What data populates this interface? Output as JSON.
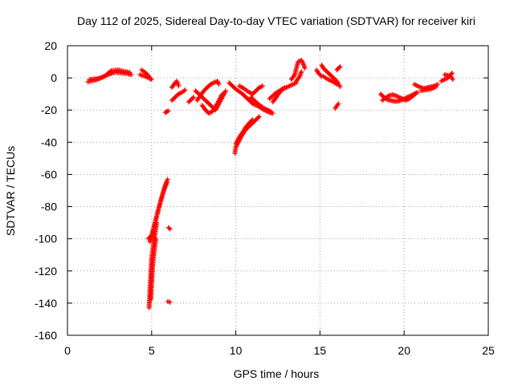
{
  "chart_data": {
    "type": "scatter",
    "title": "Day 112 of 2025, Sidereal Day-to-day VTEC variation (SDTVAR) for receiver kiri",
    "xlabel": "GPS time / hours",
    "ylabel": "SDTVAR / TECUs",
    "xlim": [
      0,
      25
    ],
    "ylim": [
      -160,
      20
    ],
    "xticks": [
      "0",
      "5",
      "10",
      "15",
      "20",
      "25"
    ],
    "yticks": [
      "20",
      "0",
      "-20",
      "-40",
      "-60",
      "-80",
      "-100",
      "-120",
      "-140",
      "-160"
    ],
    "grid": true,
    "marker": "+",
    "color": "#ff0000",
    "series": [
      {
        "segments": [
          [
            [
              1.2,
              -2.5
            ],
            [
              1.6,
              -1.5
            ],
            [
              2.0,
              0.0
            ],
            [
              2.4,
              2.0
            ],
            [
              2.8,
              3.5
            ],
            [
              3.2,
              3.0
            ],
            [
              3.6,
              2.5
            ],
            [
              3.8,
              2.0
            ]
          ],
          [
            [
              1.3,
              -1.0
            ],
            [
              1.8,
              -0.5
            ],
            [
              2.2,
              1.0
            ],
            [
              2.6,
              4.5
            ],
            [
              3.0,
              5.0
            ],
            [
              3.4,
              4.0
            ],
            [
              3.7,
              3.5
            ]
          ],
          [
            [
              4.4,
              5.0
            ],
            [
              4.6,
              3.5
            ],
            [
              4.8,
              1.5
            ],
            [
              4.9,
              0.0
            ],
            [
              5.0,
              -1.0
            ]
          ],
          [
            [
              4.3,
              2.0
            ],
            [
              4.6,
              1.0
            ],
            [
              4.9,
              -0.5
            ]
          ],
          [
            [
              4.8,
              -100.0
            ],
            [
              5.0,
              -98.0
            ],
            [
              5.2,
              -90.0
            ],
            [
              5.4,
              -82.0
            ],
            [
              5.6,
              -74.0
            ],
            [
              5.8,
              -67.0
            ],
            [
              5.95,
              -63.0
            ]
          ],
          [
            [
              4.9,
              -102.0
            ],
            [
              5.1,
              -94.0
            ],
            [
              5.3,
              -86.0
            ],
            [
              5.5,
              -78.0
            ],
            [
              5.7,
              -71.0
            ],
            [
              5.9,
              -65.0
            ]
          ],
          [
            [
              4.85,
              -143.0
            ],
            [
              4.9,
              -132.0
            ],
            [
              4.95,
              -122.0
            ],
            [
              5.0,
              -112.0
            ],
            [
              5.1,
              -104.0
            ],
            [
              5.2,
              -97.0
            ],
            [
              5.3,
              -90.0
            ]
          ],
          [
            [
              4.95,
              -138.0
            ],
            [
              5.0,
              -128.0
            ],
            [
              5.05,
              -118.0
            ],
            [
              5.15,
              -108.0
            ],
            [
              5.25,
              -100.0
            ]
          ],
          [
            [
              5.8,
              -21.5
            ],
            [
              5.9,
              -21.0
            ],
            [
              6.0,
              -20.5
            ]
          ],
          [
            [
              6.0,
              -93.0
            ],
            [
              6.1,
              -94.0
            ]
          ],
          [
            [
              5.95,
              -139.0
            ],
            [
              6.1,
              -139.5
            ]
          ],
          [
            [
              6.2,
              -6.0
            ],
            [
              6.4,
              -3.0
            ],
            [
              6.5,
              -2.0
            ],
            [
              6.6,
              -5.0
            ]
          ],
          [
            [
              6.2,
              -14.0
            ],
            [
              6.4,
              -12.0
            ],
            [
              6.6,
              -10.0
            ],
            [
              6.8,
              -9.0
            ],
            [
              7.0,
              -7.5
            ]
          ],
          [
            [
              7.2,
              -15.0
            ],
            [
              7.4,
              -13.0
            ],
            [
              7.5,
              -12.0
            ]
          ],
          [
            [
              7.6,
              -8.0
            ],
            [
              7.8,
              -10.0
            ],
            [
              8.0,
              -12.0
            ],
            [
              8.2,
              -14.0
            ],
            [
              8.4,
              -16.0
            ],
            [
              8.6,
              -18.0
            ],
            [
              8.8,
              -20.0
            ],
            [
              9.0,
              -16.0
            ],
            [
              9.2,
              -12.0
            ],
            [
              9.4,
              -8.0
            ]
          ],
          [
            [
              7.7,
              -14.0
            ],
            [
              7.9,
              -11.0
            ],
            [
              8.1,
              -8.0
            ],
            [
              8.3,
              -6.0
            ],
            [
              8.5,
              -4.0
            ],
            [
              8.7,
              -3.0
            ],
            [
              8.9,
              -2.0
            ],
            [
              9.0,
              -4.0
            ]
          ],
          [
            [
              8.0,
              -17.0
            ],
            [
              8.2,
              -20.0
            ],
            [
              8.4,
              -22.0
            ],
            [
              8.6,
              -21.0
            ],
            [
              8.8,
              -18.0
            ],
            [
              9.0,
              -14.0
            ],
            [
              9.2,
              -10.0
            ]
          ],
          [
            [
              9.6,
              -3.0
            ],
            [
              9.8,
              -5.0
            ],
            [
              10.0,
              -7.0
            ],
            [
              10.2,
              -8.5
            ],
            [
              10.4,
              -10.0
            ],
            [
              10.6,
              -12.0
            ],
            [
              10.8,
              -14.0
            ],
            [
              11.0,
              -16.0
            ],
            [
              11.2,
              -17.0
            ],
            [
              11.4,
              -18.0
            ],
            [
              11.6,
              -19.5
            ],
            [
              11.8,
              -20.5
            ],
            [
              12.0,
              -21.5
            ],
            [
              12.2,
              -22.0
            ]
          ],
          [
            [
              10.2,
              -5.0
            ],
            [
              10.4,
              -6.0
            ],
            [
              10.6,
              -7.5
            ],
            [
              10.8,
              -9.0
            ],
            [
              11.0,
              -10.0
            ],
            [
              11.2,
              -8.0
            ],
            [
              11.4,
              -6.0
            ],
            [
              11.6,
              -5.0
            ]
          ],
          [
            [
              10.9,
              -12.0
            ],
            [
              11.1,
              -14.0
            ],
            [
              11.3,
              -16.0
            ],
            [
              11.5,
              -17.5
            ],
            [
              11.7,
              -19.0
            ],
            [
              11.9,
              -20.0
            ],
            [
              12.1,
              -21.0
            ]
          ],
          [
            [
              9.95,
              -47.0
            ],
            [
              10.0,
              -43.0
            ],
            [
              10.2,
              -39.0
            ],
            [
              10.4,
              -35.0
            ],
            [
              10.6,
              -32.0
            ],
            [
              10.8,
              -30.0
            ],
            [
              11.0,
              -28.0
            ],
            [
              11.2,
              -26.0
            ],
            [
              11.4,
              -24.0
            ]
          ],
          [
            [
              10.0,
              -41.0
            ],
            [
              10.2,
              -37.0
            ],
            [
              10.4,
              -34.0
            ],
            [
              10.6,
              -30.5
            ],
            [
              10.8,
              -28.0
            ],
            [
              11.0,
              -26.0
            ]
          ],
          [
            [
              12.2,
              -15.0
            ],
            [
              12.4,
              -12.0
            ],
            [
              12.6,
              -9.0
            ],
            [
              12.8,
              -7.0
            ],
            [
              13.0,
              -6.0
            ],
            [
              13.2,
              -5.0
            ],
            [
              13.4,
              -4.0
            ],
            [
              13.6,
              -3.0
            ]
          ],
          [
            [
              12.0,
              -13.0
            ],
            [
              12.3,
              -10.0
            ],
            [
              12.6,
              -8.0
            ],
            [
              12.9,
              -6.0
            ]
          ],
          [
            [
              13.3,
              -1.0
            ],
            [
              13.5,
              2.0
            ],
            [
              13.6,
              6.0
            ],
            [
              13.7,
              10.0
            ],
            [
              13.9,
              11.0
            ],
            [
              14.0,
              9.0
            ],
            [
              14.1,
              6.0
            ]
          ],
          [
            [
              13.6,
              -2.0
            ],
            [
              13.8,
              1.0
            ],
            [
              13.9,
              4.0
            ]
          ],
          [
            [
              14.8,
              5.0
            ],
            [
              14.9,
              3.0
            ],
            [
              15.0,
              2.0
            ],
            [
              15.1,
              1.0
            ]
          ],
          [
            [
              15.1,
              8.0
            ],
            [
              15.2,
              6.0
            ],
            [
              15.4,
              4.0
            ],
            [
              15.6,
              2.0
            ],
            [
              15.8,
              0.0
            ],
            [
              16.0,
              -2.0
            ],
            [
              16.1,
              -4.0
            ],
            [
              16.2,
              -5.5
            ]
          ],
          [
            [
              15.2,
              1.0
            ],
            [
              15.4,
              -0.5
            ],
            [
              15.6,
              -1.5
            ],
            [
              15.8,
              -2.5
            ],
            [
              16.0,
              -4.0
            ]
          ],
          [
            [
              16.0,
              5.0
            ],
            [
              16.1,
              6.0
            ],
            [
              16.2,
              7.0
            ]
          ],
          [
            [
              15.9,
              -19.0
            ],
            [
              16.0,
              -17.5
            ],
            [
              16.1,
              -16.0
            ]
          ],
          [
            [
              18.6,
              -10.0
            ],
            [
              18.8,
              -12.0
            ],
            [
              19.0,
              -13.5
            ],
            [
              19.2,
              -14.0
            ],
            [
              19.4,
              -14.5
            ],
            [
              19.6,
              -14.5
            ],
            [
              19.8,
              -14.0
            ],
            [
              20.0,
              -13.0
            ],
            [
              20.2,
              -12.0
            ],
            [
              20.4,
              -11.0
            ],
            [
              20.6,
              -10.0
            ],
            [
              20.8,
              -9.0
            ]
          ],
          [
            [
              18.7,
              -14.0
            ],
            [
              18.9,
              -12.5
            ],
            [
              19.1,
              -11.0
            ],
            [
              19.3,
              -10.5
            ],
            [
              19.5,
              -11.0
            ],
            [
              19.7,
              -12.0
            ],
            [
              19.9,
              -13.0
            ],
            [
              20.1,
              -14.0
            ],
            [
              20.3,
              -13.0
            ],
            [
              20.5,
              -11.5
            ],
            [
              20.7,
              -9.5
            ]
          ],
          [
            [
              20.6,
              -4.0
            ],
            [
              20.8,
              -5.0
            ],
            [
              21.0,
              -6.0
            ],
            [
              21.2,
              -6.5
            ],
            [
              21.4,
              -6.0
            ],
            [
              21.6,
              -5.5
            ],
            [
              21.8,
              -5.0
            ],
            [
              22.0,
              -4.0
            ]
          ],
          [
            [
              21.0,
              -8.0
            ],
            [
              21.3,
              -7.5
            ],
            [
              21.6,
              -7.0
            ],
            [
              21.9,
              -5.5
            ]
          ],
          [
            [
              22.2,
              -2.0
            ],
            [
              22.4,
              -1.0
            ],
            [
              22.6,
              0.0
            ],
            [
              22.7,
              1.0
            ],
            [
              22.8,
              2.5
            ],
            [
              22.85,
              3.0
            ]
          ],
          [
            [
              22.4,
              2.0
            ],
            [
              22.6,
              1.5
            ],
            [
              22.8,
              0.5
            ],
            [
              22.9,
              -1.0
            ]
          ]
        ]
      }
    ]
  }
}
